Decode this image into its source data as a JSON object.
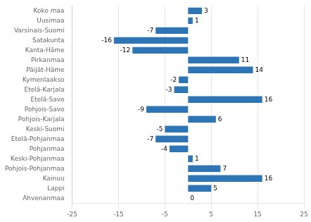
{
  "chart_data": {
    "type": "bar",
    "orientation": "horizontal",
    "categories": [
      "Koko maa",
      "Uusimaa",
      "Varsinais-Suomi",
      "Satakunta",
      "Kanta-Häme",
      "Pirkanmaa",
      "Päijät-Häme",
      "Kymenlaakso",
      "Etelä-Karjala",
      "Etelä-Savo",
      "Pohjois-Savo",
      "Pohjois-Karjala",
      "Keski-Suomi",
      "Etelä-Pohjanmaa",
      "Pohjanmaa",
      "Keski-Pohjanmaa",
      "Pohjois-Pohjanmaa",
      "Kainuu",
      "Lappi",
      "Ahvenanmaa"
    ],
    "values": [
      3,
      1,
      -7,
      -16,
      -12,
      11,
      14,
      -2,
      -3,
      16,
      -9,
      6,
      -5,
      -7,
      -4,
      1,
      7,
      16,
      5,
      0
    ],
    "color": "#2e75b6",
    "xlim": [
      -25,
      25
    ],
    "xticks": [
      -25,
      -15,
      -5,
      5,
      15,
      25
    ],
    "grid": true,
    "data_labels": true
  }
}
